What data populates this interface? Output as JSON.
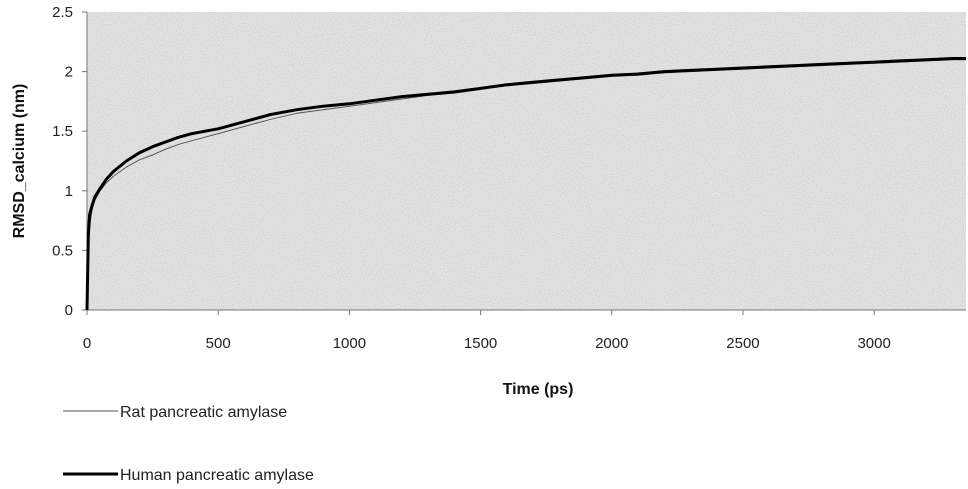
{
  "chart_data": {
    "type": "line",
    "title": "",
    "xlabel": "Time (ps)",
    "ylabel": "RMSD_calcium (nm)",
    "xlim": [
      0,
      3350
    ],
    "ylim": [
      0,
      2.5
    ],
    "xticks": [
      "0",
      "500",
      "1000",
      "1500",
      "2000",
      "2500",
      "3000"
    ],
    "yticks": [
      "0",
      "0.5",
      "1",
      "1.5",
      "2",
      "2.5"
    ],
    "grid": false,
    "legend_position": "bottom-left",
    "series": [
      {
        "name": "Rat pancreatic amylase",
        "color": "#555555",
        "x": [
          0,
          5,
          10,
          20,
          30,
          50,
          75,
          100,
          150,
          200,
          250,
          300,
          350,
          400,
          450,
          500,
          600,
          700,
          800,
          900,
          1000,
          1100,
          1200,
          1300,
          1400,
          1500,
          1600,
          1700,
          1800,
          1900,
          2000,
          2100,
          2200,
          2300,
          2400,
          2500,
          2600,
          2700,
          2800,
          2900,
          3000,
          3100,
          3200,
          3300,
          3350
        ],
        "y": [
          0,
          0.5,
          0.7,
          0.85,
          0.92,
          1.0,
          1.07,
          1.12,
          1.2,
          1.26,
          1.3,
          1.35,
          1.39,
          1.42,
          1.45,
          1.48,
          1.54,
          1.6,
          1.65,
          1.68,
          1.71,
          1.74,
          1.77,
          1.8,
          1.82,
          1.85,
          1.88,
          1.9,
          1.92,
          1.94,
          1.96,
          1.97,
          1.99,
          2.0,
          2.01,
          2.02,
          2.03,
          2.04,
          2.05,
          2.06,
          2.07,
          2.08,
          2.09,
          2.1,
          2.1
        ]
      },
      {
        "name": "Human pancreatic amylase",
        "color": "#000000",
        "x": [
          0,
          5,
          10,
          20,
          30,
          50,
          75,
          100,
          150,
          200,
          250,
          300,
          350,
          400,
          450,
          500,
          600,
          700,
          800,
          900,
          1000,
          1100,
          1200,
          1300,
          1400,
          1500,
          1600,
          1700,
          1800,
          1900,
          2000,
          2100,
          2200,
          2300,
          2400,
          2500,
          2600,
          2700,
          2800,
          2900,
          3000,
          3100,
          3200,
          3300,
          3350
        ],
        "y": [
          0,
          0.62,
          0.8,
          0.88,
          0.95,
          1.02,
          1.1,
          1.16,
          1.25,
          1.32,
          1.37,
          1.41,
          1.45,
          1.48,
          1.5,
          1.52,
          1.58,
          1.64,
          1.68,
          1.71,
          1.73,
          1.76,
          1.79,
          1.81,
          1.83,
          1.86,
          1.89,
          1.91,
          1.93,
          1.95,
          1.97,
          1.98,
          2.0,
          2.01,
          2.02,
          2.03,
          2.04,
          2.05,
          2.06,
          2.07,
          2.08,
          2.09,
          2.1,
          2.11,
          2.11
        ]
      }
    ]
  }
}
